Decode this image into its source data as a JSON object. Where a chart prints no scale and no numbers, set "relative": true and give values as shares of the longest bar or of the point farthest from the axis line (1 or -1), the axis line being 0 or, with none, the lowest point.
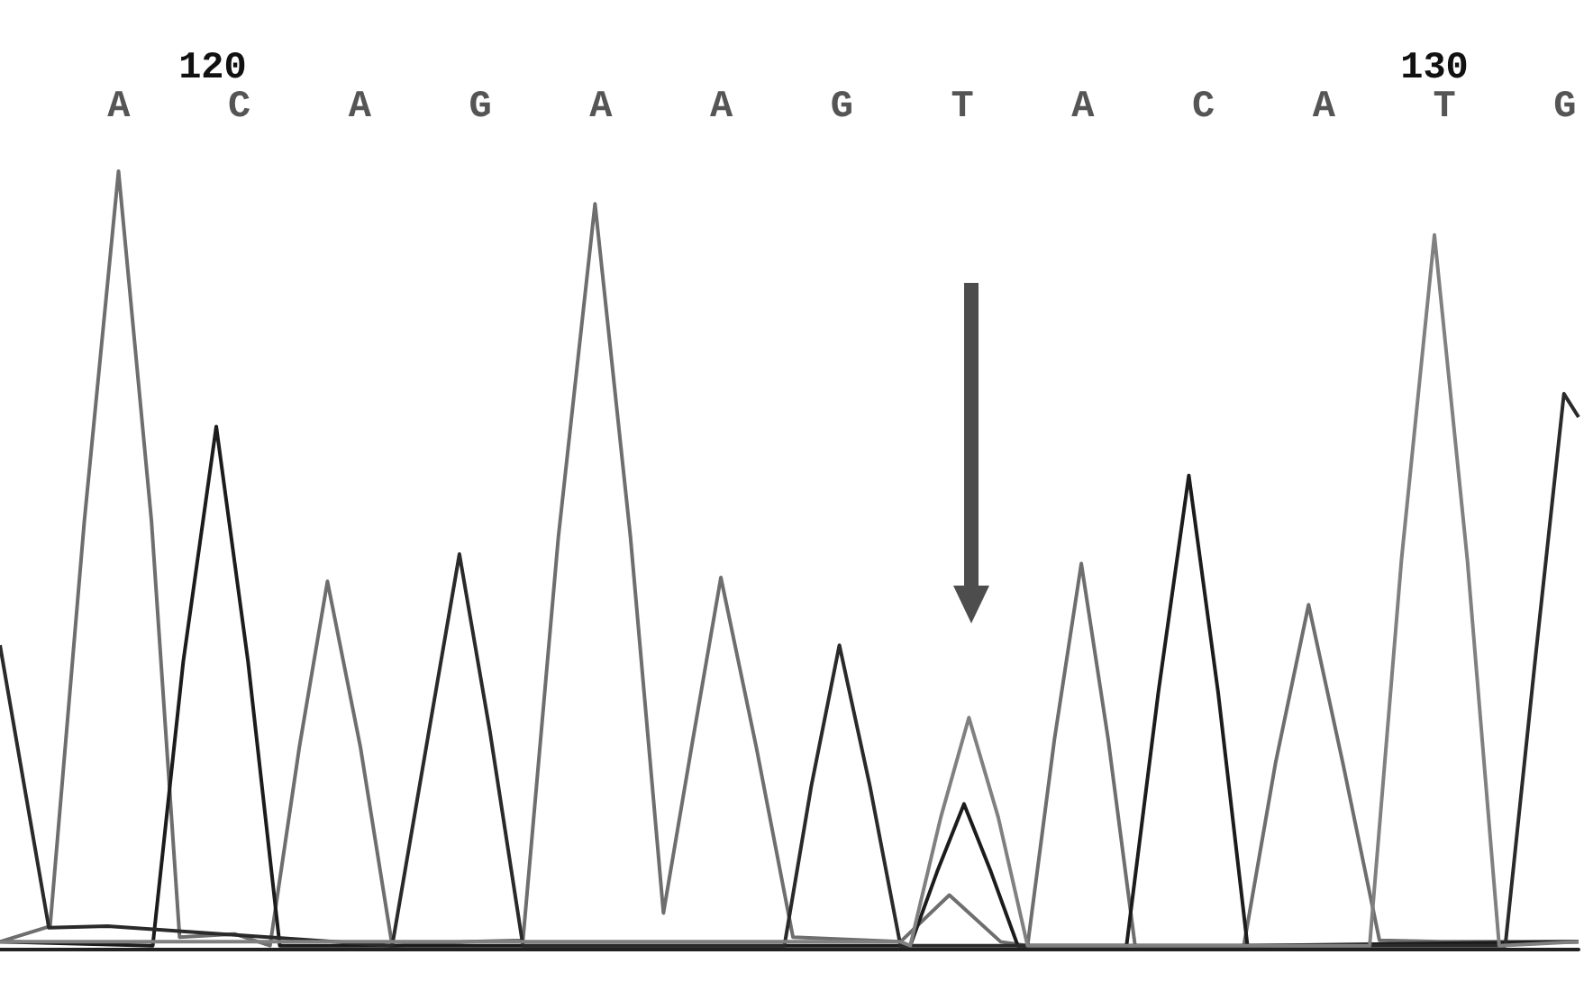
{
  "chart_data": {
    "type": "line",
    "relative": true,
    "xlim": [
      118.26,
      131.18
    ],
    "xticks": [
      120,
      130
    ],
    "annotations": [
      "A",
      "C",
      "A",
      "G",
      "A",
      "A",
      "G",
      "T",
      "A",
      "C",
      "A",
      "T",
      "G"
    ],
    "series": [
      {
        "color": "#6e6e6e",
        "x": [
          118.26,
          118.67,
          118.95,
          119.23,
          119.5,
          119.73,
          120.18,
          120.47,
          120.71,
          120.94,
          121.21,
          121.47,
          122.09,
          122.54,
          122.83,
          123.13,
          123.42,
          123.69,
          123.92,
          124.16,
          124.45,
          124.75,
          125.63,
          126.03,
          126.45,
          126.67,
          126.89,
          127.11,
          127.33,
          127.55,
          128.44,
          128.7,
          128.97,
          129.25,
          129.55,
          130.06,
          131.18
        ],
        "values": [
          0.01,
          0.03,
          0.55,
          1.0,
          0.55,
          0.016,
          0.02,
          0.005,
          0.26,
          0.473,
          0.26,
          0.005,
          0.01,
          0.012,
          0.53,
          0.958,
          0.53,
          0.047,
          0.26,
          0.478,
          0.26,
          0.016,
          0.01,
          0.07,
          0.01,
          0.005,
          0.27,
          0.496,
          0.27,
          0.005,
          0.005,
          0.24,
          0.443,
          0.24,
          0.012,
          0.01,
          0.01
        ]
      },
      {
        "color": "#1c1c1c",
        "x": [
          118.26,
          119.51,
          119.76,
          120.03,
          120.29,
          120.55,
          125.71,
          125.93,
          126.15,
          126.37,
          126.59,
          127.48,
          127.74,
          127.99,
          128.23,
          128.47,
          131.18
        ],
        "values": [
          0.01,
          0.005,
          0.37,
          0.672,
          0.37,
          0.005,
          0.005,
          0.1,
          0.187,
          0.1,
          0.005,
          0.005,
          0.33,
          0.609,
          0.33,
          0.005,
          0.01
        ]
      },
      {
        "color": "#2a2a2a",
        "x": [
          118.26,
          118.47,
          118.66,
          119.14,
          121.47,
          121.77,
          122.02,
          122.27,
          122.54,
          124.68,
          124.9,
          125.13,
          125.38,
          125.63,
          130.58,
          130.83,
          131.06,
          131.18
        ],
        "values": [
          0.391,
          0.2,
          0.028,
          0.03,
          0.005,
          0.28,
          0.508,
          0.28,
          0.005,
          0.005,
          0.21,
          0.391,
          0.21,
          0.005,
          0.005,
          0.38,
          0.714,
          0.684
        ]
      },
      {
        "color": "#808080",
        "x": [
          118.26,
          125.63,
          125.71,
          125.96,
          126.19,
          126.43,
          126.67,
          129.47,
          129.73,
          130.0,
          130.27,
          130.53,
          131.18
        ],
        "values": [
          0.01,
          0.01,
          0.005,
          0.17,
          0.298,
          0.17,
          0.005,
          0.005,
          0.5,
          0.918,
          0.5,
          0.005,
          0.01
        ]
      }
    ]
  }
}
